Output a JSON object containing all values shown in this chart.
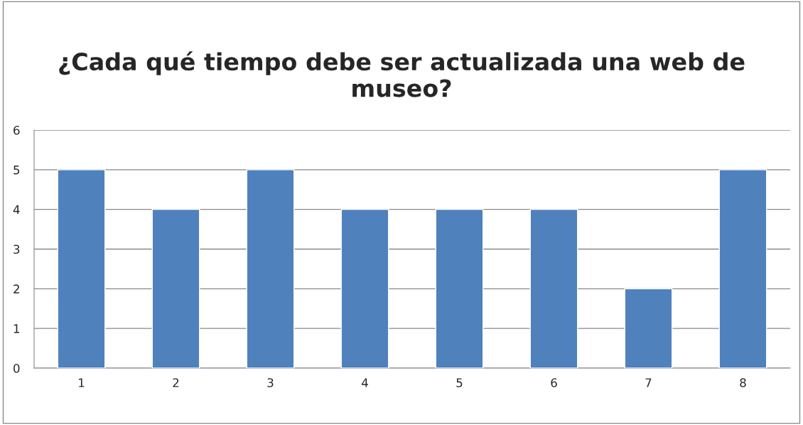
{
  "chart_data": {
    "type": "bar",
    "title": "¿Cada qué tiempo debe ser actualizada una web de museo?",
    "categories": [
      "1",
      "2",
      "3",
      "4",
      "5",
      "6",
      "7",
      "8"
    ],
    "values": [
      5,
      4,
      5,
      4,
      4,
      4,
      2,
      5
    ],
    "color": "#4f81bd",
    "ylim": [
      0,
      6
    ],
    "yticks": [
      0,
      1,
      2,
      3,
      4,
      5,
      6
    ],
    "grid": "y",
    "legend": false
  }
}
